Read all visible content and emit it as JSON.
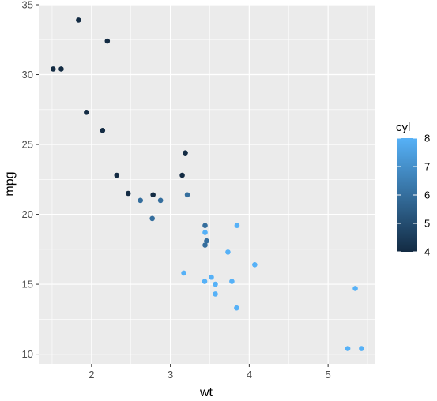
{
  "chart_data": {
    "type": "scatter",
    "title": "",
    "xlabel": "wt",
    "ylabel": "mpg",
    "xlim": [
      1.33,
      5.59
    ],
    "ylim": [
      9.3,
      35.0
    ],
    "xticks": [
      2,
      3,
      4,
      5
    ],
    "yticks": [
      10,
      15,
      20,
      25,
      30,
      35
    ],
    "x_minor": [
      1.5,
      2.5,
      3.5,
      4.5,
      5.5
    ],
    "y_minor": [
      12.5,
      17.5,
      22.5,
      27.5,
      32.5
    ],
    "grid": true,
    "panel_color": "#ebebeb",
    "grid_color": "#ffffff",
    "color_scale": {
      "variable": "cyl",
      "low": 4,
      "high": 8,
      "low_color": "#132b43",
      "high_color": "#56b1f7",
      "ticks": [
        4,
        5,
        6,
        7,
        8
      ]
    },
    "legend": {
      "title": "cyl",
      "position": "right"
    },
    "points": [
      {
        "x": 2.62,
        "y": 21.0,
        "cyl": 6
      },
      {
        "x": 2.875,
        "y": 21.0,
        "cyl": 6
      },
      {
        "x": 2.32,
        "y": 22.8,
        "cyl": 4
      },
      {
        "x": 3.215,
        "y": 21.4,
        "cyl": 6
      },
      {
        "x": 3.44,
        "y": 18.7,
        "cyl": 8
      },
      {
        "x": 3.46,
        "y": 18.1,
        "cyl": 6
      },
      {
        "x": 3.57,
        "y": 14.3,
        "cyl": 8
      },
      {
        "x": 3.19,
        "y": 24.4,
        "cyl": 4
      },
      {
        "x": 3.15,
        "y": 22.8,
        "cyl": 4
      },
      {
        "x": 3.44,
        "y": 19.2,
        "cyl": 6
      },
      {
        "x": 3.44,
        "y": 17.8,
        "cyl": 6
      },
      {
        "x": 4.07,
        "y": 16.4,
        "cyl": 8
      },
      {
        "x": 3.73,
        "y": 17.3,
        "cyl": 8
      },
      {
        "x": 3.78,
        "y": 15.2,
        "cyl": 8
      },
      {
        "x": 5.25,
        "y": 10.4,
        "cyl": 8
      },
      {
        "x": 5.424,
        "y": 10.4,
        "cyl": 8
      },
      {
        "x": 5.345,
        "y": 14.7,
        "cyl": 8
      },
      {
        "x": 2.2,
        "y": 32.4,
        "cyl": 4
      },
      {
        "x": 1.615,
        "y": 30.4,
        "cyl": 4
      },
      {
        "x": 1.835,
        "y": 33.9,
        "cyl": 4
      },
      {
        "x": 2.465,
        "y": 21.5,
        "cyl": 4
      },
      {
        "x": 3.52,
        "y": 15.5,
        "cyl": 8
      },
      {
        "x": 3.435,
        "y": 15.2,
        "cyl": 8
      },
      {
        "x": 3.84,
        "y": 13.3,
        "cyl": 8
      },
      {
        "x": 3.845,
        "y": 19.2,
        "cyl": 8
      },
      {
        "x": 1.935,
        "y": 27.3,
        "cyl": 4
      },
      {
        "x": 2.14,
        "y": 26.0,
        "cyl": 4
      },
      {
        "x": 1.513,
        "y": 30.4,
        "cyl": 4
      },
      {
        "x": 3.17,
        "y": 15.8,
        "cyl": 8
      },
      {
        "x": 2.77,
        "y": 19.7,
        "cyl": 6
      },
      {
        "x": 3.57,
        "y": 15.0,
        "cyl": 8
      },
      {
        "x": 2.78,
        "y": 21.4,
        "cyl": 4
      }
    ]
  }
}
